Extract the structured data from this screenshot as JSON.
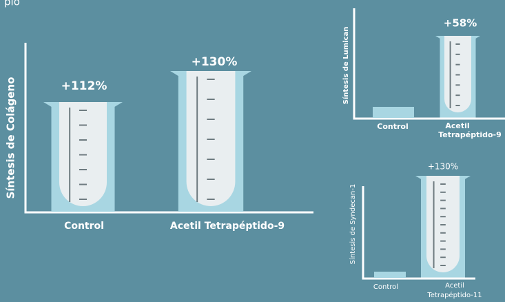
{
  "header": {
    "fragment": "plo"
  },
  "charts": [
    {
      "y_label": "Síntesis de Colágeno",
      "bars": [
        {
          "label_lines": [
            "Control"
          ],
          "annotation": "+112%"
        },
        {
          "label_lines": [
            "Acetil Tetrapéptido-9"
          ],
          "annotation": "+130%"
        }
      ]
    },
    {
      "y_label": "Síntesis de Lumican",
      "bars": [
        {
          "label_lines": [
            "Control"
          ]
        },
        {
          "label_lines": [
            "Acetil",
            "Tetrapéptido-9"
          ],
          "annotation": "+58%"
        }
      ]
    },
    {
      "y_label": "Síntesis de Syndecan-1",
      "bars": [
        {
          "label_lines": [
            "Control"
          ]
        },
        {
          "label_lines": [
            "Acetil",
            "Tetrapéptido-11"
          ],
          "annotation": "+130%"
        }
      ]
    }
  ]
}
